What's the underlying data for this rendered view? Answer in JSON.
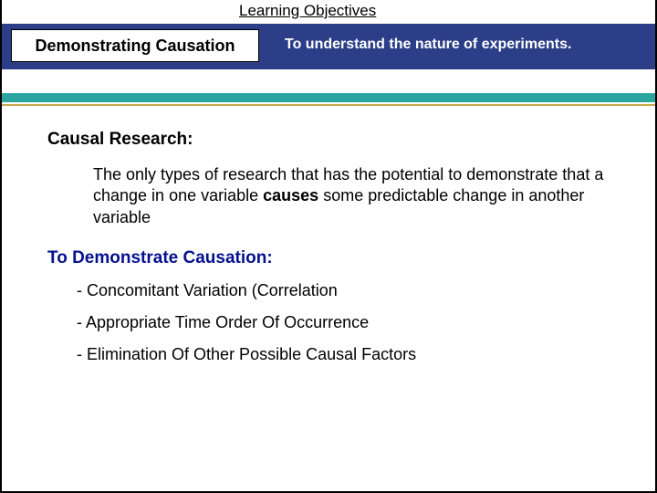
{
  "header": {
    "label": "Learning Objectives",
    "title": "Demonstrating Causation",
    "objective": "To understand the nature of experiments."
  },
  "colors": {
    "navy": "#2b3e87",
    "teal": "#2aa5a0",
    "gold": "#c9a949",
    "heading_blue": "#06118f",
    "text": "#000000",
    "background": "#ffffff"
  },
  "sections": {
    "research": {
      "heading": "Causal Research:",
      "body_pre": "The only types of research that has the potential to demonstrate that a change in one variable ",
      "body_bold": "causes",
      "body_post": " some predictable change in another variable"
    },
    "demonstrate": {
      "heading": "To Demonstrate Causation:",
      "bullets": [
        "- Concomitant Variation (Correlation",
        "- Appropriate Time Order Of Occurrence",
        "- Elimination Of Other Possible Causal Factors"
      ]
    }
  }
}
